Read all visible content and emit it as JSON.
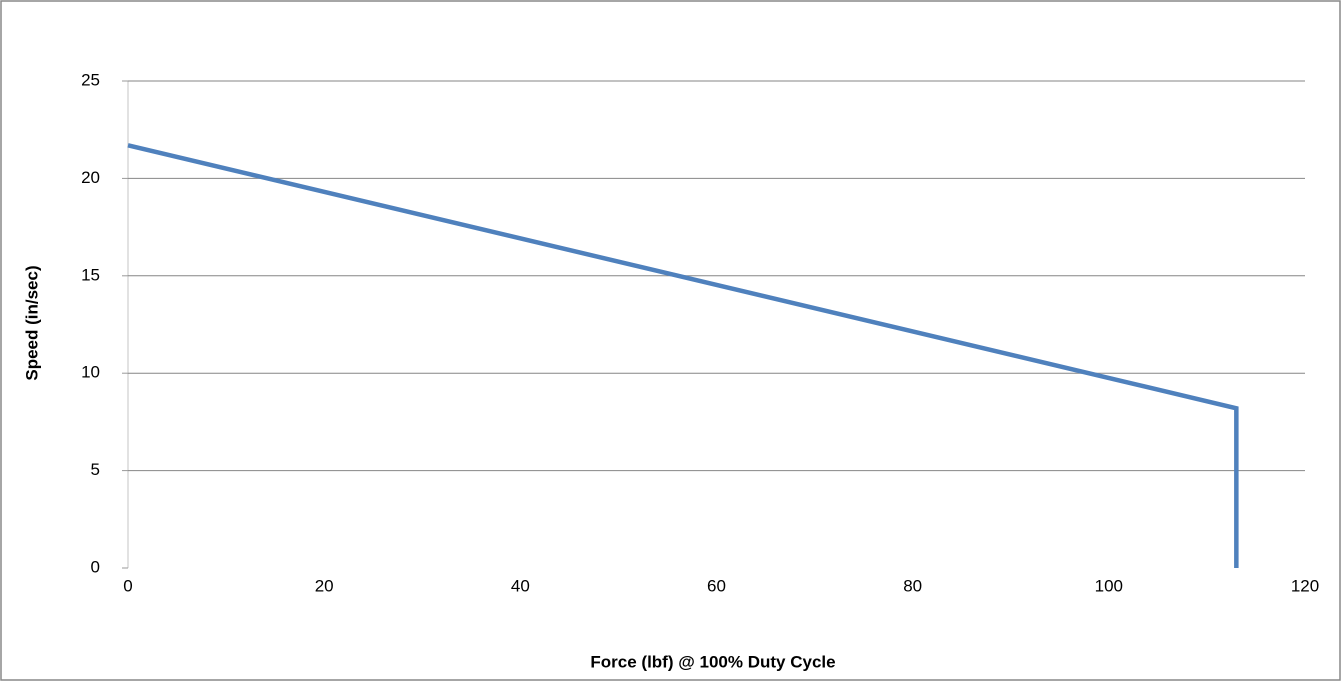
{
  "chart_data": {
    "type": "line",
    "x_label": "Force (lbf) @ 100% Duty Cycle",
    "y_label": "Speed (in/sec)",
    "x": [
      0,
      113,
      113
    ],
    "values": [
      21.7,
      8.2,
      0
    ],
    "color": "#4f81bd",
    "xlim": [
      0,
      120
    ],
    "xticks": [
      0,
      20,
      40,
      60,
      80,
      100,
      120
    ],
    "ylim": [
      0,
      25
    ],
    "yticks": [
      0,
      5,
      10,
      15,
      20,
      25
    ],
    "grid": true
  }
}
